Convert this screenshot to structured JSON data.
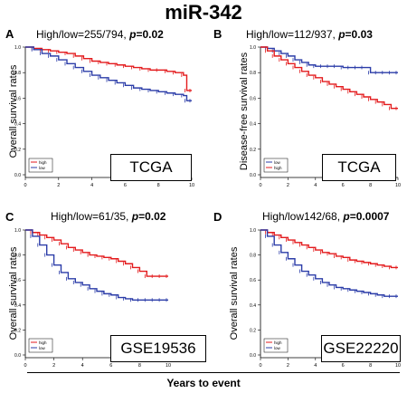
{
  "figure": {
    "title": "miR-342",
    "xlabel": "Years to event"
  },
  "colors": {
    "high": "#e31a1c",
    "low": "#2b3ca8"
  },
  "chart_data": [
    {
      "type": "line",
      "panel": "A",
      "header": "High/low=255/794,",
      "p_label": "p",
      "p_value": "=0.02",
      "ylabel": "Overall survival rates",
      "cohort": "TCGA",
      "xlim": [
        0,
        10
      ],
      "ylim": [
        0,
        1
      ],
      "xticks": [
        "0",
        "2",
        "4",
        "6",
        "8",
        "10"
      ],
      "yticks": [
        "0.0",
        "0.2",
        "0.4",
        "0.6",
        "0.8",
        "1.0"
      ],
      "legend": [
        "high",
        "low"
      ],
      "series": [
        {
          "name": "high",
          "x": [
            0,
            0.5,
            1,
            1.5,
            2,
            2.5,
            3,
            3.5,
            4,
            4.5,
            5,
            5.5,
            6,
            6.5,
            7,
            7.5,
            8,
            8.5,
            9,
            9.5,
            9.7,
            10
          ],
          "y": [
            1,
            0.99,
            0.98,
            0.97,
            0.96,
            0.95,
            0.93,
            0.91,
            0.89,
            0.88,
            0.87,
            0.86,
            0.85,
            0.84,
            0.83,
            0.82,
            0.82,
            0.81,
            0.8,
            0.78,
            0.66,
            0.66
          ]
        },
        {
          "name": "low",
          "x": [
            0,
            0.5,
            1,
            1.5,
            2,
            2.5,
            3,
            3.5,
            4,
            4.5,
            5,
            5.5,
            6,
            6.5,
            7,
            7.5,
            8,
            8.5,
            9,
            9.5,
            9.7,
            10
          ],
          "y": [
            1,
            0.98,
            0.95,
            0.93,
            0.9,
            0.87,
            0.84,
            0.81,
            0.78,
            0.76,
            0.74,
            0.72,
            0.7,
            0.68,
            0.67,
            0.66,
            0.65,
            0.64,
            0.63,
            0.62,
            0.58,
            0.58
          ]
        }
      ]
    },
    {
      "type": "line",
      "panel": "B",
      "header": "High/low=112/937,",
      "p_label": "p",
      "p_value": "=0.03",
      "ylabel": "Disease-free survival rates",
      "cohort": "TCGA",
      "xlim": [
        0,
        10
      ],
      "ylim": [
        0,
        1
      ],
      "xticks": [
        "0",
        "2",
        "4",
        "6",
        "8",
        "10"
      ],
      "yticks": [
        "0.0",
        "0.2",
        "0.4",
        "0.6",
        "0.8",
        "1.0"
      ],
      "legend": [
        "low",
        "high"
      ],
      "series": [
        {
          "name": "low",
          "x": [
            0,
            0.5,
            1,
            1.5,
            2,
            2.5,
            3,
            3.5,
            4,
            4.5,
            5,
            5.5,
            6,
            6.5,
            7,
            7.5,
            8,
            8.5,
            9,
            9.5,
            10
          ],
          "y": [
            1,
            0.99,
            0.97,
            0.95,
            0.93,
            0.9,
            0.88,
            0.86,
            0.85,
            0.85,
            0.85,
            0.85,
            0.84,
            0.84,
            0.84,
            0.84,
            0.8,
            0.8,
            0.8,
            0.8,
            0.8
          ]
        },
        {
          "name": "high",
          "x": [
            0,
            0.5,
            1,
            1.5,
            2,
            2.5,
            3,
            3.5,
            4,
            4.5,
            5,
            5.5,
            6,
            6.5,
            7,
            7.5,
            8,
            8.5,
            9,
            9.5,
            10
          ],
          "y": [
            1,
            0.97,
            0.93,
            0.9,
            0.87,
            0.84,
            0.81,
            0.78,
            0.76,
            0.73,
            0.71,
            0.69,
            0.67,
            0.65,
            0.63,
            0.61,
            0.59,
            0.57,
            0.55,
            0.52,
            0.52
          ]
        }
      ]
    },
    {
      "type": "line",
      "panel": "C",
      "header": "High/low=61/35,",
      "p_label": "p",
      "p_value": "=0.02",
      "ylabel": "Overall survival rates",
      "cohort": "GSE19536",
      "xlim": [
        0,
        10
      ],
      "ylim": [
        0,
        1
      ],
      "xticks": [
        "0",
        "2",
        "4",
        "6",
        "8",
        "10"
      ],
      "yticks": [
        "0.0",
        "0.2",
        "0.4",
        "0.6",
        "0.8",
        "1.0"
      ],
      "legend": [
        "high",
        "low"
      ],
      "series": [
        {
          "name": "high",
          "x": [
            0,
            0.5,
            1,
            1.5,
            2,
            2.5,
            3,
            3.5,
            4,
            4.5,
            5,
            5.5,
            6,
            6.5,
            7,
            7.5,
            8,
            8.5,
            9,
            9.5,
            10
          ],
          "y": [
            1,
            0.98,
            0.96,
            0.94,
            0.92,
            0.89,
            0.86,
            0.84,
            0.82,
            0.8,
            0.79,
            0.78,
            0.77,
            0.75,
            0.73,
            0.7,
            0.67,
            0.63,
            0.63,
            0.63,
            0.63
          ]
        },
        {
          "name": "low",
          "x": [
            0,
            0.5,
            1,
            1.5,
            2,
            2.5,
            3,
            3.5,
            4,
            4.5,
            5,
            5.5,
            6,
            6.5,
            7,
            7.5,
            8,
            8.5,
            9,
            9.5,
            10
          ],
          "y": [
            1,
            0.95,
            0.88,
            0.8,
            0.72,
            0.66,
            0.61,
            0.58,
            0.56,
            0.53,
            0.51,
            0.49,
            0.48,
            0.46,
            0.45,
            0.44,
            0.44,
            0.44,
            0.44,
            0.44,
            0.44
          ]
        }
      ]
    },
    {
      "type": "line",
      "panel": "D",
      "header": "High/low142/68,",
      "p_label": "p",
      "p_value": "=0.0007",
      "ylabel": "Overall survival rates",
      "cohort": "GSE22220",
      "xlim": [
        0,
        10
      ],
      "ylim": [
        0,
        1
      ],
      "xticks": [
        "0",
        "2",
        "4",
        "6",
        "8",
        "10"
      ],
      "yticks": [
        "0.0",
        "0.2",
        "0.4",
        "0.6",
        "0.8",
        "1.0"
      ],
      "legend": [
        "high",
        "low"
      ],
      "series": [
        {
          "name": "high",
          "x": [
            0,
            0.5,
            1,
            1.5,
            2,
            2.5,
            3,
            3.5,
            4,
            4.5,
            5,
            5.5,
            6,
            6.5,
            7,
            7.5,
            8,
            8.5,
            9,
            9.5,
            10
          ],
          "y": [
            1,
            0.98,
            0.96,
            0.94,
            0.92,
            0.9,
            0.88,
            0.86,
            0.84,
            0.82,
            0.81,
            0.79,
            0.78,
            0.76,
            0.75,
            0.74,
            0.73,
            0.72,
            0.71,
            0.7,
            0.7
          ]
        },
        {
          "name": "low",
          "x": [
            0,
            0.5,
            1,
            1.5,
            2,
            2.5,
            3,
            3.5,
            4,
            4.5,
            5,
            5.5,
            6,
            6.5,
            7,
            7.5,
            8,
            8.5,
            9,
            9.5,
            10
          ],
          "y": [
            1,
            0.95,
            0.88,
            0.82,
            0.77,
            0.72,
            0.67,
            0.64,
            0.61,
            0.58,
            0.56,
            0.54,
            0.53,
            0.52,
            0.51,
            0.5,
            0.49,
            0.48,
            0.47,
            0.47,
            0.47
          ]
        }
      ]
    }
  ]
}
